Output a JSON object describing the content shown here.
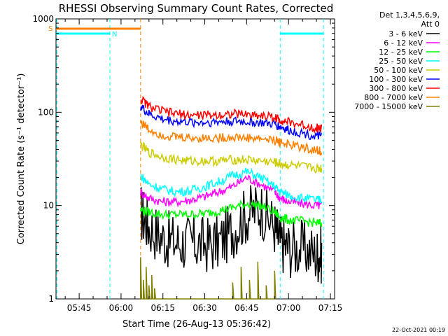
{
  "chart_data": {
    "type": "line",
    "title": "RHESSI Observing Summary Count Rates, Corrected",
    "xlabel": "Start Time (26-Aug-13 05:36:42)",
    "ylabel": "Corrected Count Rate (s⁻¹ detector⁻¹)",
    "y_scale": "log",
    "ylim": [
      1,
      1000
    ],
    "xlim": [
      "05:36:42",
      "07:16:30"
    ],
    "x_ticks": [
      "05:45",
      "06:00",
      "06:15",
      "06:30",
      "06:45",
      "07:00",
      "07:15"
    ],
    "y_ticks": [
      "1",
      "10",
      "100",
      "1000"
    ],
    "legend_header": [
      "Det 1,3,4,5,6,9,",
      "Att 0"
    ],
    "legend_position": "right",
    "footer_date": "22-Oct-2021 00:19",
    "flag_labels": {
      "S": "S",
      "N": "N"
    },
    "flag_colors": {
      "S": "#ff8000",
      "N": "#00ffff"
    },
    "annotations": [
      {
        "label": "S",
        "segments": [
          [
            "05:36:42",
            "06:07:00"
          ]
        ],
        "color": "#ff8000"
      },
      {
        "label": "N",
        "segments": [
          [
            "05:36:42",
            "05:56:00"
          ],
          [
            "06:57:00",
            "07:12:30"
          ]
        ],
        "color": "#00ffff"
      }
    ],
    "vertical_markers": [
      {
        "time": "05:37:00",
        "color": "#00ffff"
      },
      {
        "time": "05:56:00",
        "color": "#00ffff"
      },
      {
        "time": "06:07:00",
        "color": "#ff8000"
      },
      {
        "time": "06:57:00",
        "color": "#00ffff"
      },
      {
        "time": "07:12:30",
        "color": "#00ffff"
      }
    ],
    "series": [
      {
        "name": "3 - 6 keV",
        "color": "#000000",
        "x": [
          "06:07",
          "06:10",
          "06:15",
          "06:20",
          "06:25",
          "06:30",
          "06:35",
          "06:40",
          "06:45",
          "06:50",
          "06:55",
          "06:57",
          "07:00",
          "07:05",
          "07:10",
          "07:12"
        ],
        "y": [
          8.5,
          6,
          4.5,
          4,
          4,
          3.8,
          4,
          5.5,
          8,
          9.5,
          6,
          4,
          3.5,
          3.5,
          3,
          3
        ]
      },
      {
        "name": "6 - 12 keV",
        "color": "#ff00ff",
        "x": [
          "06:07",
          "06:10",
          "06:15",
          "06:20",
          "06:25",
          "06:30",
          "06:35",
          "06:40",
          "06:45",
          "06:50",
          "06:55",
          "06:57",
          "07:00",
          "07:05",
          "07:10",
          "07:12"
        ],
        "y": [
          14,
          12,
          11,
          11,
          11.5,
          12.5,
          14,
          16,
          20,
          17,
          14,
          12,
          11,
          10.5,
          10,
          10
        ]
      },
      {
        "name": "12 - 25 keV",
        "color": "#00ff00",
        "x": [
          "06:07",
          "06:10",
          "06:15",
          "06:20",
          "06:25",
          "06:30",
          "06:35",
          "06:40",
          "06:45",
          "06:50",
          "06:55",
          "06:57",
          "07:00",
          "07:05",
          "07:10",
          "07:12"
        ],
        "y": [
          9,
          8.5,
          8,
          8,
          8,
          8.2,
          8.8,
          9.5,
          10.5,
          10,
          8.5,
          7.5,
          7,
          6.8,
          6.5,
          6.5
        ]
      },
      {
        "name": "25 - 50 keV",
        "color": "#00ffff",
        "x": [
          "06:07",
          "06:10",
          "06:15",
          "06:20",
          "06:25",
          "06:30",
          "06:35",
          "06:40",
          "06:45",
          "06:50",
          "06:55",
          "06:57",
          "07:00",
          "07:05",
          "07:10",
          "07:12"
        ],
        "y": [
          21,
          17,
          15,
          14,
          14.5,
          16,
          18,
          21,
          23,
          20,
          16,
          14,
          13,
          12,
          11.5,
          11.5
        ]
      },
      {
        "name": "50 - 100 keV",
        "color": "#cccc00",
        "x": [
          "06:07",
          "06:10",
          "06:15",
          "06:20",
          "06:25",
          "06:30",
          "06:35",
          "06:40",
          "06:45",
          "06:50",
          "06:55",
          "06:57",
          "07:00",
          "07:05",
          "07:10",
          "07:12"
        ],
        "y": [
          45,
          37,
          33,
          31,
          30,
          30,
          30,
          31,
          31,
          30,
          29,
          28,
          27,
          26,
          25,
          25
        ]
      },
      {
        "name": "100 - 300 keV",
        "color": "#0000ff",
        "x": [
          "06:07",
          "06:10",
          "06:15",
          "06:20",
          "06:25",
          "06:30",
          "06:35",
          "06:40",
          "06:45",
          "06:50",
          "06:55",
          "06:57",
          "07:00",
          "07:05",
          "07:10",
          "07:12"
        ],
        "y": [
          115,
          95,
          84,
          80,
          78,
          78,
          79,
          80,
          79,
          77,
          74,
          70,
          64,
          60,
          55,
          55
        ]
      },
      {
        "name": "300 - 800 keV",
        "color": "#ff0000",
        "x": [
          "06:07",
          "06:10",
          "06:15",
          "06:20",
          "06:25",
          "06:30",
          "06:35",
          "06:40",
          "06:45",
          "06:50",
          "06:55",
          "06:57",
          "07:00",
          "07:05",
          "07:10",
          "07:12"
        ],
        "y": [
          140,
          115,
          102,
          96,
          93,
          93,
          94,
          96,
          95,
          93,
          88,
          83,
          78,
          73,
          68,
          67
        ]
      },
      {
        "name": "800 - 7000 keV",
        "color": "#ff8000",
        "x": [
          "06:07",
          "06:10",
          "06:15",
          "06:20",
          "06:25",
          "06:30",
          "06:35",
          "06:40",
          "06:45",
          "06:50",
          "06:55",
          "06:57",
          "07:00",
          "07:05",
          "07:10",
          "07:12"
        ],
        "y": [
          80,
          65,
          57,
          54,
          53,
          53,
          53,
          54,
          53,
          52,
          50,
          48,
          45,
          42,
          39,
          38
        ]
      },
      {
        "name": "7000 - 15000 keV",
        "color": "#808000",
        "x": [
          "06:07",
          "06:08",
          "06:09",
          "06:10",
          "06:11",
          "06:12",
          "06:40",
          "06:43",
          "06:46",
          "06:49",
          "06:52",
          "06:55"
        ],
        "y": [
          2.8,
          1.6,
          2.2,
          1.4,
          1.8,
          1.3,
          1.5,
          2.2,
          1.6,
          2.5,
          1.4,
          2.0
        ]
      }
    ]
  }
}
